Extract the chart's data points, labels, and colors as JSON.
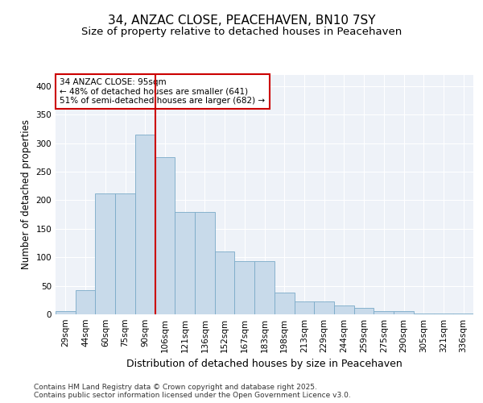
{
  "title_line1": "34, ANZAC CLOSE, PEACEHAVEN, BN10 7SY",
  "title_line2": "Size of property relative to detached houses in Peacehaven",
  "xlabel": "Distribution of detached houses by size in Peacehaven",
  "ylabel": "Number of detached properties",
  "categories": [
    "29sqm",
    "44sqm",
    "60sqm",
    "75sqm",
    "90sqm",
    "106sqm",
    "121sqm",
    "136sqm",
    "152sqm",
    "167sqm",
    "183sqm",
    "198sqm",
    "213sqm",
    "229sqm",
    "244sqm",
    "259sqm",
    "275sqm",
    "290sqm",
    "305sqm",
    "321sqm",
    "336sqm"
  ],
  "values": [
    5,
    43,
    212,
    212,
    315,
    275,
    180,
    180,
    110,
    93,
    93,
    38,
    23,
    23,
    15,
    12,
    5,
    5,
    2,
    2,
    2
  ],
  "bar_color": "#c8daea",
  "bar_edge_color": "#7aaac8",
  "vline_color": "#cc0000",
  "annotation_text": "34 ANZAC CLOSE: 95sqm\n← 48% of detached houses are smaller (641)\n51% of semi-detached houses are larger (682) →",
  "annotation_box_color": "#ffffff",
  "annotation_box_edge": "#cc0000",
  "ylim": [
    0,
    420
  ],
  "yticks": [
    0,
    50,
    100,
    150,
    200,
    250,
    300,
    350,
    400
  ],
  "bg_color": "#ffffff",
  "plot_bg_color": "#eef2f8",
  "grid_color": "#ffffff",
  "footer": "Contains HM Land Registry data © Crown copyright and database right 2025.\nContains public sector information licensed under the Open Government Licence v3.0.",
  "title_fontsize": 11,
  "subtitle_fontsize": 9.5,
  "ylabel_fontsize": 8.5,
  "xlabel_fontsize": 9,
  "tick_fontsize": 7.5,
  "annotation_fontsize": 7.5,
  "footer_fontsize": 6.5
}
